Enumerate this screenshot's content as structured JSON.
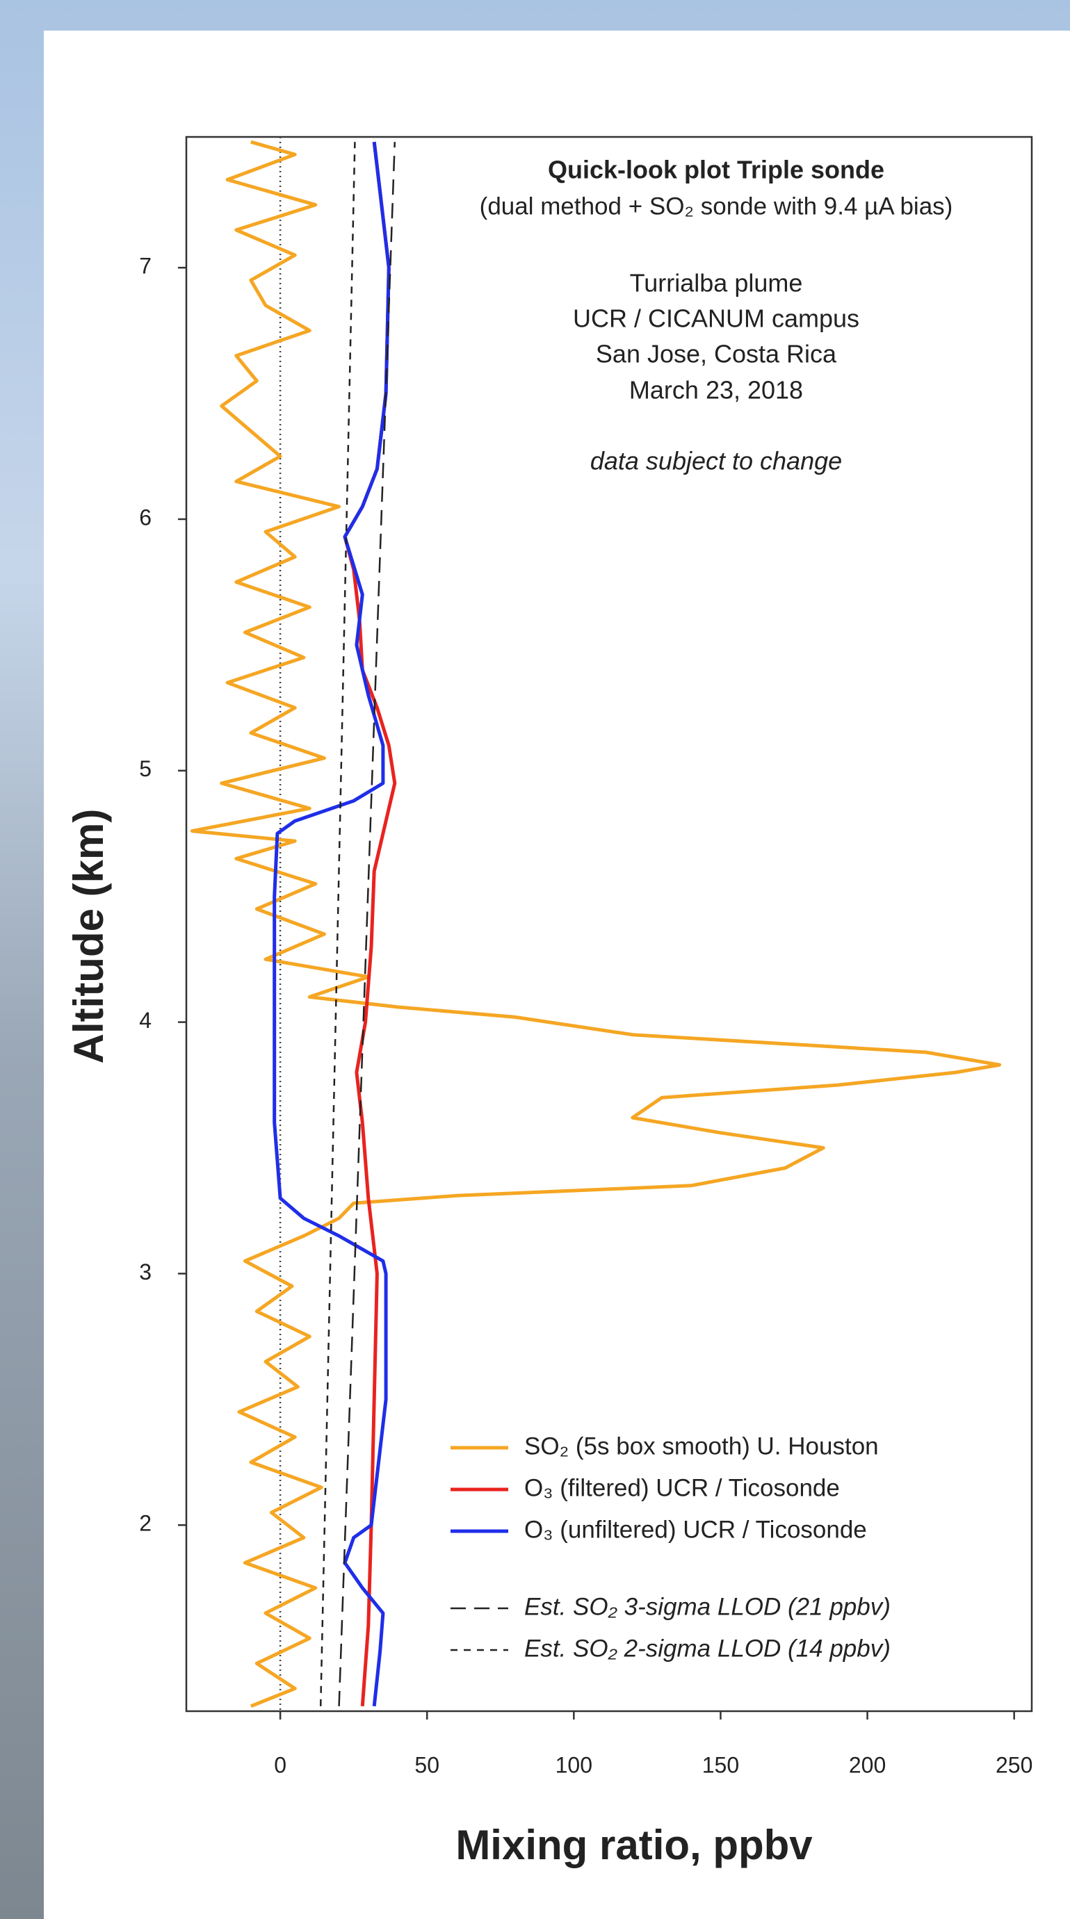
{
  "chart_data": {
    "type": "line",
    "title": "Quick-look plot Triple sonde",
    "subtitle": "(dual method + SO₂ sonde with 9.4 µA bias)",
    "annotations": [
      "Turrialba plume",
      "UCR / CICANUM campus",
      "San Jose, Costa Rica",
      "March 23, 2018",
      "data subject to change"
    ],
    "xlabel": "Mixing ratio, ppbv",
    "ylabel": "Altitude (km)",
    "xlim": [
      -32,
      256
    ],
    "ylim": [
      1.26,
      7.52
    ],
    "xticks": [
      0,
      50,
      100,
      150,
      200,
      250
    ],
    "yticks": [
      2,
      3,
      4,
      5,
      6,
      7
    ],
    "reference_x": 0,
    "series": [
      {
        "name": "SO₂ (5s box smooth) U. Houston",
        "color": "#f5a623",
        "dash": "solid",
        "x": [
          -10,
          5,
          -8,
          10,
          -5,
          12,
          -12,
          8,
          -3,
          14,
          -10,
          5,
          -14,
          6,
          -5,
          10,
          -8,
          4,
          -12,
          8,
          20,
          25,
          60,
          140,
          172,
          185,
          150,
          120,
          130,
          190,
          230,
          245,
          220,
          120,
          80,
          40,
          10,
          30,
          -5,
          15,
          -8,
          12,
          -15,
          5,
          -30,
          10,
          -20,
          15,
          -10,
          5,
          -18,
          8,
          -12,
          10,
          -15,
          5,
          -5,
          20,
          -15,
          0,
          -10,
          -20,
          -8,
          -15,
          10,
          -5,
          -10,
          5,
          -15,
          12,
          -18,
          5,
          -10
        ],
        "y": [
          1.28,
          1.35,
          1.45,
          1.55,
          1.65,
          1.75,
          1.85,
          1.95,
          2.05,
          2.15,
          2.25,
          2.35,
          2.45,
          2.55,
          2.65,
          2.75,
          2.85,
          2.95,
          3.05,
          3.15,
          3.22,
          3.28,
          3.31,
          3.35,
          3.42,
          3.5,
          3.56,
          3.62,
          3.7,
          3.75,
          3.8,
          3.83,
          3.88,
          3.95,
          4.02,
          4.06,
          4.1,
          4.18,
          4.25,
          4.35,
          4.45,
          4.55,
          4.65,
          4.72,
          4.76,
          4.85,
          4.95,
          5.05,
          5.15,
          5.25,
          5.35,
          5.45,
          5.55,
          5.65,
          5.75,
          5.85,
          5.95,
          6.05,
          6.15,
          6.25,
          6.35,
          6.45,
          6.55,
          6.65,
          6.75,
          6.85,
          6.95,
          7.05,
          7.15,
          7.25,
          7.35,
          7.45,
          7.5
        ]
      },
      {
        "name": "O₃ (filtered) UCR / Ticosonde",
        "color": "#e8231f",
        "dash": "solid",
        "x": [
          28,
          30,
          31,
          32,
          33,
          30,
          28,
          26,
          29,
          31,
          32,
          36,
          39,
          37,
          33,
          28,
          27,
          25,
          22,
          28,
          33,
          36,
          37,
          34,
          32
        ],
        "y": [
          1.28,
          1.6,
          2.0,
          2.5,
          3.0,
          3.3,
          3.6,
          3.8,
          4.0,
          4.3,
          4.6,
          4.8,
          4.95,
          5.1,
          5.25,
          5.4,
          5.6,
          5.8,
          5.93,
          6.05,
          6.2,
          6.5,
          7.0,
          7.3,
          7.5
        ]
      },
      {
        "name": "O₃ (unfiltered) UCR / Ticosonde",
        "color": "#1f2ee8",
        "dash": "solid",
        "x": [
          32,
          34,
          35,
          28,
          22,
          25,
          31,
          36,
          36,
          35,
          20,
          8,
          0,
          -2,
          -2,
          -2,
          -1,
          5,
          25,
          35,
          35,
          30,
          26,
          28,
          22,
          28,
          33,
          36,
          37,
          34,
          32
        ],
        "y": [
          1.28,
          1.5,
          1.65,
          1.75,
          1.85,
          1.95,
          2.0,
          2.5,
          3.0,
          3.05,
          3.15,
          3.22,
          3.3,
          3.6,
          4.0,
          4.5,
          4.75,
          4.8,
          4.88,
          4.95,
          5.1,
          5.3,
          5.5,
          5.7,
          5.93,
          6.05,
          6.2,
          6.5,
          7.0,
          7.3,
          7.5
        ]
      },
      {
        "name": "Est. SO₂ 3-sigma LLOD (21 ppbv)",
        "color": "#222222",
        "dash": "long",
        "x": [
          20,
          39
        ],
        "y": [
          1.28,
          7.5
        ]
      },
      {
        "name": "Est. SO₂ 2-sigma LLOD (14 ppbv)",
        "color": "#222222",
        "dash": "short",
        "x": [
          13.75,
          25.4
        ],
        "y": [
          1.28,
          7.5
        ]
      }
    ]
  }
}
